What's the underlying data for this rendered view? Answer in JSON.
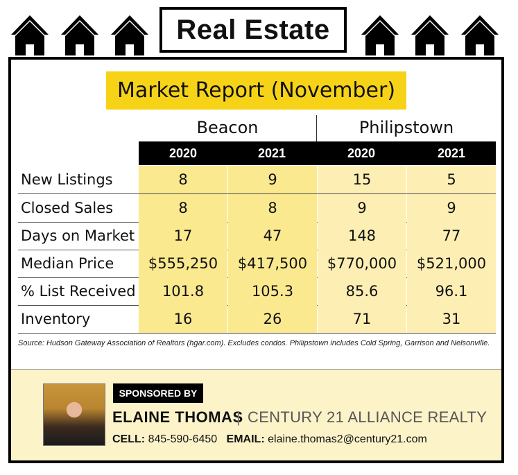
{
  "header": {
    "title": "Real Estate"
  },
  "report": {
    "title": "Market Report (November)"
  },
  "towns": [
    "Beacon",
    "Philipstown"
  ],
  "years": [
    "2020",
    "2021",
    "2020",
    "2021"
  ],
  "rows": [
    {
      "label": "New Listings",
      "values": [
        "8",
        "9",
        "15",
        "5"
      ]
    },
    {
      "label": "Closed Sales",
      "values": [
        "8",
        "8",
        "9",
        "9"
      ]
    },
    {
      "label": "Days on Market",
      "values": [
        "17",
        "47",
        "148",
        "77"
      ]
    },
    {
      "label": "Median Price",
      "values": [
        "$555,250",
        "$417,500",
        "$770,000",
        "$521,000"
      ]
    },
    {
      "label": "% List Received",
      "values": [
        "101.8",
        "105.3",
        "85.6",
        "96.1"
      ]
    },
    {
      "label": "Inventory",
      "values": [
        "16",
        "26",
        "71",
        "31"
      ]
    }
  ],
  "source": "Source: Hudson Gateway Association of Realtors (hgar.com). Excludes condos. Philipstown includes Cold Spring, Garrison and Nelsonville.",
  "sponsor": {
    "badge": "SPONSORED BY",
    "name": "ELAINE THOMAS",
    "separator": "|",
    "agency": "CENTURY 21 ALLIANCE REALTY",
    "cell_label": "CELL:",
    "cell": "845-590-6450",
    "email_label": "EMAIL:",
    "email": "elaine.thomas2@century21.com"
  },
  "colors": {
    "yellow": "#f7d318",
    "beacon_cells": "#fbe98f",
    "philipstown_cells": "#fdefb4",
    "sponsor_bg": "#fdf3c9"
  }
}
